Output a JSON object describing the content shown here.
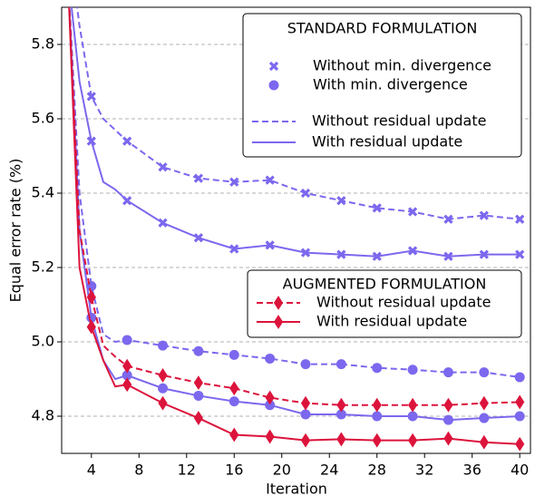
{
  "chart_data": {
    "type": "line",
    "x_label": "Iteration",
    "y_label": "Equal error rate (%)",
    "x": [
      2,
      3,
      4,
      5,
      6,
      7,
      10,
      13,
      16,
      19,
      22,
      25,
      28,
      31,
      34,
      37,
      40
    ],
    "xlim": [
      1.5,
      40.9
    ],
    "xticks": [
      4,
      8,
      12,
      16,
      20,
      24,
      28,
      32,
      36,
      40
    ],
    "ylim": [
      4.7,
      5.9
    ],
    "yticks": [
      4.8,
      {
        "value": 5,
        "label": "5.0"
      },
      5.2,
      5.4,
      5.6,
      5.8
    ],
    "grid": true,
    "series": [
      {
        "color": "#7b68ee",
        "dash": true,
        "marker": "x",
        "values": [
          6.1,
          5.85,
          5.66,
          5.6,
          5.57,
          5.54,
          5.47,
          5.44,
          5.43,
          5.435,
          5.4,
          5.38,
          5.36,
          5.35,
          5.33,
          5.34,
          5.33
        ]
      },
      {
        "color": "#7b68ee",
        "dash": false,
        "marker": "x",
        "values": [
          6.0,
          5.7,
          5.54,
          5.43,
          5.41,
          5.38,
          5.32,
          5.28,
          5.25,
          5.26,
          5.24,
          5.235,
          5.23,
          5.245,
          5.23,
          5.235,
          5.235
        ]
      },
      {
        "color": "#7b68ee",
        "dash": true,
        "marker": "o",
        "values": [
          6.0,
          5.4,
          5.15,
          5.02,
          5.0,
          5.005,
          4.99,
          4.975,
          4.965,
          4.955,
          4.94,
          4.94,
          4.93,
          4.925,
          4.918,
          4.918,
          4.905
        ]
      },
      {
        "color": "#7b68ee",
        "dash": false,
        "marker": "o",
        "values": [
          6.0,
          5.3,
          5.065,
          4.95,
          4.9,
          4.91,
          4.875,
          4.855,
          4.84,
          4.83,
          4.805,
          4.805,
          4.8,
          4.8,
          4.79,
          4.795,
          4.8
        ]
      },
      {
        "color": "#dc143c",
        "dash": true,
        "marker": "d",
        "values": [
          6.0,
          5.3,
          5.12,
          4.99,
          4.96,
          4.935,
          4.91,
          4.89,
          4.875,
          4.85,
          4.835,
          4.83,
          4.83,
          4.83,
          4.83,
          4.835,
          4.838
        ]
      },
      {
        "color": "#dc143c",
        "dash": false,
        "marker": "d",
        "values": [
          6.0,
          5.2,
          5.04,
          4.95,
          4.88,
          4.885,
          4.835,
          4.795,
          4.75,
          4.745,
          4.735,
          4.738,
          4.735,
          4.735,
          4.74,
          4.73,
          4.725
        ]
      }
    ],
    "legends": [
      {
        "title": "STANDARD FORMULATION",
        "color": "#7b68ee",
        "entries": [
          {
            "label": "Without min. divergence",
            "marker": "x"
          },
          {
            "label": "With min. divergence",
            "marker": "o"
          },
          {
            "label": "Without residual update",
            "dash": true
          },
          {
            "label": "With residual update",
            "dash": false
          }
        ]
      },
      {
        "title": "AUGMENTED FORMULATION",
        "color": "#dc143c",
        "entries": [
          {
            "label": "Without residual update",
            "dash": true,
            "marker": "d"
          },
          {
            "label": "With residual update",
            "dash": false,
            "marker": "d"
          }
        ]
      }
    ]
  }
}
